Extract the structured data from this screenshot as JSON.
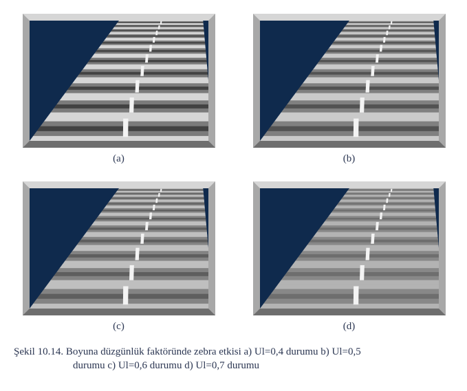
{
  "figure": {
    "panels": [
      {
        "key": "a",
        "label": "(a)",
        "ul": 0.4,
        "contrast_amp": 0.32
      },
      {
        "key": "b",
        "label": "(b)",
        "ul": 0.5,
        "contrast_amp": 0.26
      },
      {
        "key": "c",
        "label": "(c)",
        "ul": 0.6,
        "contrast_amp": 0.21
      },
      {
        "key": "d",
        "label": "(d)",
        "ul": 0.7,
        "contrast_amp": 0.15
      }
    ],
    "caption_line1": "Şekil 10.14. Boyuna düzgünlük faktöründe zebra etkisi a) Ul=0,4 durumu b) Ul=0,5",
    "caption_line2": "durumu c) Ul=0,6 durumu d) Ul=0,7 durumu",
    "road": {
      "background_color": "#0f2a4d",
      "mean_gray": "#949494",
      "lane_line_color": "#f3f3f3",
      "frame_bevel_light": "#d6d6d6",
      "frame_bevel_mid": "#a8a8a8",
      "frame_bevel_dark": "#6e6e6e",
      "stripe_count": 11,
      "dash_count": 10,
      "left_edge_top_x": 0.5,
      "right_edge_top_x": 0.97,
      "left_edge_bot_x": 0.0,
      "right_edge_bot_x": 1.03,
      "divider_top_x": 0.74,
      "divider_bot_x": 0.52,
      "aspect_w": 260,
      "aspect_h": 175
    }
  }
}
